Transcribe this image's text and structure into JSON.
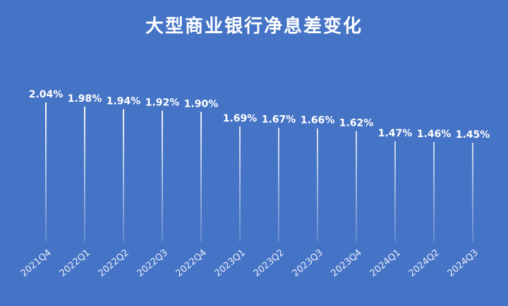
{
  "chart_data": {
    "type": "lollipop",
    "title": "大型商业银行净息差变化",
    "categories": [
      "2021Q4",
      "2022Q1",
      "2022Q2",
      "2022Q3",
      "2022Q4",
      "2023Q1",
      "2023Q2",
      "2023Q3",
      "2023Q4",
      "2024Q1",
      "2024Q2",
      "2024Q3"
    ],
    "values": [
      2.04,
      1.98,
      1.94,
      1.92,
      1.9,
      1.69,
      1.67,
      1.66,
      1.62,
      1.47,
      1.46,
      1.45
    ],
    "value_labels": [
      "2.04%",
      "1.98%",
      "1.94%",
      "1.92%",
      "1.90%",
      "1.69%",
      "1.67%",
      "1.66%",
      "1.62%",
      "1.47%",
      "1.46%",
      "1.45%"
    ],
    "color": "#ffffff",
    "background": "#4573c5"
  }
}
